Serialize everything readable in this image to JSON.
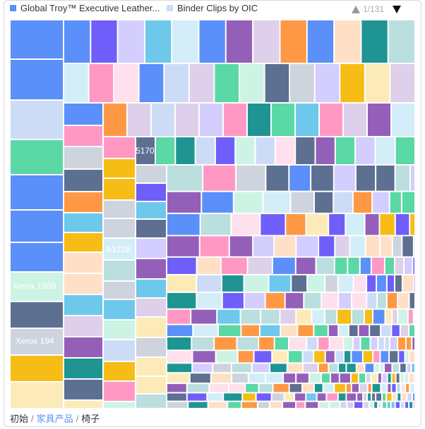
{
  "legend": {
    "items": [
      {
        "label": "Global Troy™ Executive Leather...",
        "color": "#5b8ff9"
      },
      {
        "label": "Binder Clips by OIC",
        "color": "#cddcf6"
      }
    ],
    "pager_text": "1/131"
  },
  "breadcrumb": {
    "root": "初始",
    "level1": "家具产品",
    "current": "椅子",
    "separator": "/"
  },
  "chart_data": {
    "type": "treemap",
    "labels": [
      "5170",
      "A1228",
      "Xerox 1939",
      "Xerox 194"
    ],
    "palette": [
      "#5b8ff9",
      "#cddcf6",
      "#5ad8a6",
      "#cdf3e4",
      "#5d7092",
      "#ced4de",
      "#f6bd16",
      "#fcebb9",
      "#6f5ef9",
      "#d3cefd",
      "#6dc8ec",
      "#d3eef9",
      "#945fb9",
      "#decfea",
      "#ff9845",
      "#ffe0c7",
      "#1e9493",
      "#bbdedf",
      "#ff99c3",
      "#ffe0ed"
    ]
  }
}
